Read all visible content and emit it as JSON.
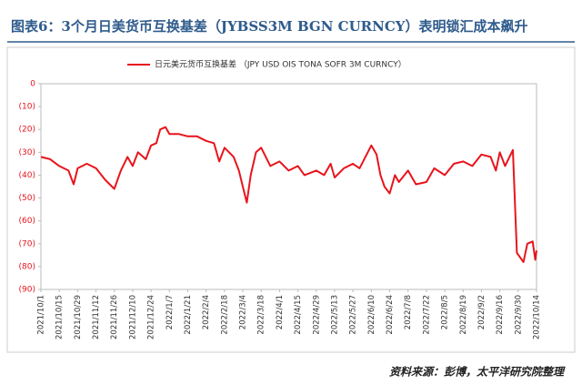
{
  "chart_data": {
    "type": "line",
    "title": "图表6：3个月日美货币互换基差（JYBSS3M BGN CURNCY）表明锁汇成本飙升",
    "source": "资料来源：彭博，太平洋研究院整理",
    "x": [
      "2021/10/1",
      "2021/10/8",
      "2021/10/15",
      "2021/10/22",
      "2021/10/26",
      "2021/10/29",
      "2021/11/5",
      "2021/11/12",
      "2021/11/19",
      "2021/11/26",
      "2021/12/1",
      "2021/12/6",
      "2021/12/10",
      "2021/12/14",
      "2021/12/20",
      "2021/12/24",
      "2021/12/28",
      "2021/12/31",
      "2022/1/4",
      "2022/1/7",
      "2022/1/14",
      "2022/1/21",
      "2022/1/28",
      "2022/2/4",
      "2022/2/10",
      "2022/2/14",
      "2022/2/18",
      "2022/2/25",
      "2022/3/1",
      "2022/3/4",
      "2022/3/7",
      "2022/3/10",
      "2022/3/14",
      "2022/3/18",
      "2022/3/25",
      "2022/4/1",
      "2022/4/8",
      "2022/4/15",
      "2022/4/20",
      "2022/4/29",
      "2022/5/5",
      "2022/5/10",
      "2022/5/13",
      "2022/5/20",
      "2022/5/27",
      "2022/6/1",
      "2022/6/10",
      "2022/6/14",
      "2022/6/17",
      "2022/6/20",
      "2022/6/24",
      "2022/6/28",
      "2022/7/1",
      "2022/7/8",
      "2022/7/14",
      "2022/7/22",
      "2022/7/28",
      "2022/8/5",
      "2022/8/12",
      "2022/8/19",
      "2022/8/26",
      "2022/9/2",
      "2022/9/9",
      "2022/9/13",
      "2022/9/16",
      "2022/9/20",
      "2022/9/26",
      "2022/9/29",
      "2022/10/4",
      "2022/10/7",
      "2022/10/11",
      "2022/10/13",
      "2022/10/14"
    ],
    "series": [
      {
        "name": "日元美元货币互换基差 （JPY USD OIS TONA SOFR 3M CURNCY）",
        "color": "#e8141c",
        "values": [
          -32,
          -33,
          -36,
          -38,
          -44,
          -37,
          -35,
          -37,
          -42,
          -46,
          -38,
          -32,
          -36,
          -30,
          -33,
          -27,
          -26,
          -20,
          -19,
          -22,
          -22,
          -23,
          -23,
          -25,
          -26,
          -34,
          -28,
          -32,
          -38,
          -45,
          -52,
          -40,
          -30,
          -28,
          -36,
          -34,
          -38,
          -36,
          -40,
          -38,
          -40,
          -35,
          -41,
          -37,
          -35,
          -37,
          -27,
          -31,
          -40,
          -45,
          -48,
          -40,
          -43,
          -38,
          -44,
          -43,
          -37,
          -40,
          -35,
          -34,
          -36,
          -31,
          -32,
          -38,
          -30,
          -36,
          -29,
          -74,
          -78,
          -70,
          -69,
          -77,
          -73
        ]
      }
    ],
    "xlim": [
      "2021/10/1",
      "2022/10/14"
    ],
    "xticks": [
      "2021/10/1",
      "2021/10/15",
      "2021/10/29",
      "2021/11/12",
      "2021/11/26",
      "2021/12/10",
      "2021/12/24",
      "2022/1/7",
      "2022/1/21",
      "2022/2/4",
      "2022/2/18",
      "2022/3/4",
      "2022/3/18",
      "2022/4/1",
      "2022/4/15",
      "2022/4/29",
      "2022/5/13",
      "2022/5/27",
      "2022/6/10",
      "2022/6/24",
      "2022/7/8",
      "2022/7/22",
      "2022/8/5",
      "2022/8/19",
      "2022/9/2",
      "2022/9/16",
      "2022/9/30",
      "2022/10/14"
    ],
    "ylim": [
      -90,
      0
    ],
    "yticks": [
      0,
      {
        "value": -10,
        "label": "(10)"
      },
      {
        "value": -20,
        "label": "(20)"
      },
      {
        "value": -30,
        "label": "(30)"
      },
      {
        "value": -40,
        "label": "(40)"
      },
      {
        "value": -50,
        "label": "(50)"
      },
      {
        "value": -60,
        "label": "(60)"
      },
      {
        "value": -70,
        "label": "(70)"
      },
      {
        "value": -80,
        "label": "(80)"
      },
      {
        "value": -90,
        "label": "(90)"
      }
    ]
  }
}
